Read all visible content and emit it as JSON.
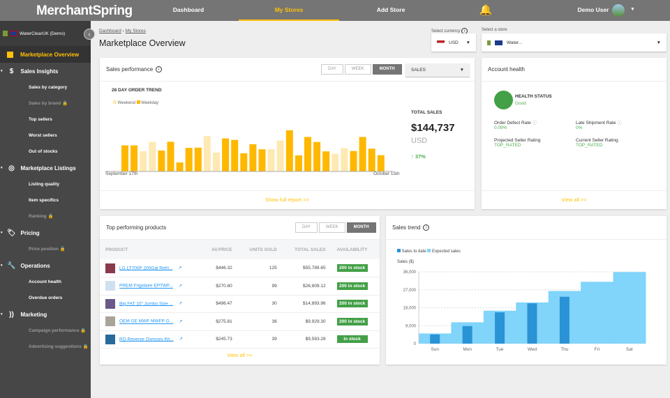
{
  "header": {
    "logo": "MerchantSpring",
    "nav": [
      "Dashboard",
      "My Stores",
      "Add Store"
    ],
    "active_nav": "My Stores",
    "user": "Demo User"
  },
  "sidebar": {
    "store": "WaterClearUK (Demo)",
    "active": "Marketplace Overview",
    "sections": [
      {
        "label": "Sales Insights",
        "icon": "dollar-icon",
        "items": [
          {
            "label": "Sales by category",
            "locked": false
          },
          {
            "label": "Sales by brand",
            "locked": true
          },
          {
            "label": "Top sellers",
            "locked": false
          },
          {
            "label": "Worst sellers",
            "locked": false
          },
          {
            "label": "Out of stocks",
            "locked": false
          }
        ]
      },
      {
        "label": "Marketplace Listings",
        "icon": "target-icon",
        "items": [
          {
            "label": "Listing quality",
            "locked": false
          },
          {
            "label": "Item specifics",
            "locked": false
          },
          {
            "label": "Ranking",
            "locked": true
          }
        ]
      },
      {
        "label": "Pricing",
        "icon": "tag-icon",
        "items": [
          {
            "label": "Price position",
            "locked": true
          }
        ]
      },
      {
        "label": "Operations",
        "icon": "wrench-icon",
        "items": [
          {
            "label": "Account health",
            "locked": false
          },
          {
            "label": "Overdue orders",
            "locked": false
          }
        ]
      },
      {
        "label": "Marketing",
        "icon": "rss-icon",
        "items": [
          {
            "label": "Campaign performance",
            "locked": true
          },
          {
            "label": "Advertising suggestions",
            "locked": true
          }
        ]
      }
    ]
  },
  "breadcrumb": [
    "Dashboard",
    "My Stores"
  ],
  "page_title": "Marketplace Overview",
  "currency": {
    "label": "Select currency",
    "value": "USD"
  },
  "store_select": {
    "label": "Select a store",
    "value": "Water..."
  },
  "sales_performance": {
    "title": "Sales performance",
    "toggles": [
      "DAY",
      "WEEK",
      "MONTH"
    ],
    "active": "MONTH",
    "metric": "SALES",
    "total_label": "TOTAL SALES",
    "total": "$144,737",
    "currency": "USD",
    "change": "↑ 37%",
    "link": "Show full report >>"
  },
  "account_health": {
    "title": "Account health",
    "status_label": "HEALTH STATUS",
    "status": "Good",
    "status_color": "#43a047",
    "metrics": [
      {
        "label": "Order Defect Rate",
        "value": "0.09%"
      },
      {
        "label": "Late Shipment Rate",
        "value": "0%"
      },
      {
        "label": "Projected Seller Rating",
        "value": "TOP_RATED"
      },
      {
        "label": "Current Seller Rating",
        "value": "TOP_RATED"
      }
    ],
    "link": "View all >>"
  },
  "top_products": {
    "title": "Top performing products",
    "toggles": [
      "DAY",
      "WEEK",
      "MONTH"
    ],
    "active": "MONTH",
    "columns": [
      "PRODUCT",
      "AV.PRICE",
      "UNITS SOLD",
      "TOTAL SALES",
      "AVAILABILITY"
    ],
    "rows": [
      [
        "LG LT700P 200Gal Refri...",
        "$446.32",
        "125",
        "$55,789.65",
        "200 in stock"
      ],
      [
        "PREM Frigidaire EPTWF...",
        "$270.80",
        "99",
        "$26,809.12",
        "200 in stock"
      ],
      [
        "Big FAT 10\" Jumbo Size ...",
        "$496.47",
        "30",
        "$14,893.96",
        "200 in stock"
      ],
      [
        "OEM GE MWF MWFP G...",
        "$275.81",
        "36",
        "$9,929.30",
        "200 in stock"
      ],
      [
        "RO Reverse Osmosis Kit...",
        "$245.73",
        "39",
        "$9,583.28",
        "in stock"
      ]
    ],
    "link": "View all >>"
  },
  "sales_trend": {
    "title": "Sales trend"
  },
  "chart_data": [
    {
      "type": "bar",
      "title": "28 DAY ORDER TREND",
      "x_start": "September 17th",
      "x_end": "October 15th",
      "legend": [
        "Weekend",
        "Weekday"
      ],
      "colors": {
        "Weekend": "#ffe9b3",
        "Weekday": "#ffb800"
      },
      "values": [
        125,
        125,
        97,
        142,
        100,
        142,
        43,
        113,
        114,
        169,
        90,
        158,
        151,
        87,
        130,
        106,
        107,
        148,
        197,
        77,
        165,
        141,
        96,
        85,
        112,
        98,
        165,
        109,
        78
      ],
      "weekend": [
        false,
        false,
        true,
        true,
        false,
        false,
        false,
        false,
        false,
        true,
        true,
        false,
        false,
        false,
        false,
        false,
        true,
        true,
        false,
        false,
        false,
        false,
        false,
        true,
        true,
        false,
        false,
        false,
        false
      ]
    },
    {
      "type": "bar",
      "ylabel": "Sales ($)",
      "categories": [
        "Sun",
        "Mon",
        "Tue",
        "Wed",
        "Thu",
        "Fri",
        "Sat"
      ],
      "ylim": [
        0,
        36000
      ],
      "yticks": [
        "0",
        "9,000",
        "18,000",
        "27,000",
        "36,000"
      ],
      "legend": "top-left",
      "series": [
        {
          "name": "Sales to date",
          "color": "#2a93d5",
          "values": [
            4600,
            8800,
            15700,
            20200,
            23500,
            null,
            null
          ]
        },
        {
          "name": "Expected sales",
          "color": "#81d4fa",
          "values": [
            5100,
            10700,
            16500,
            20650,
            26400,
            31000,
            35900
          ]
        }
      ]
    }
  ]
}
